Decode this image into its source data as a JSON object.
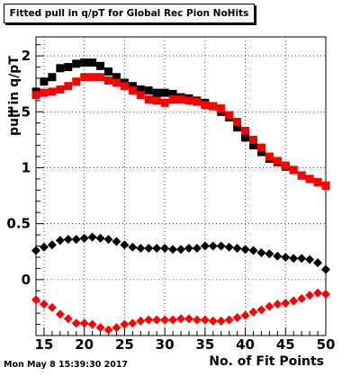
{
  "title": "Fitted pull in q/pT for Global Rec Pion NoHits",
  "timestamp": "Mon May  8 15:39:30 2017",
  "chart_data": {
    "type": "scatter",
    "title": "Fitted pull in q/pT for Global Rec Pion NoHits",
    "xlabel": "No. of Fit Points",
    "ylabel": "pull in q/pT",
    "xlim": [
      14,
      50
    ],
    "ylim": [
      -0.5,
      2.17
    ],
    "xticks": [
      15,
      20,
      25,
      30,
      35,
      40,
      45,
      50
    ],
    "yticks": [
      0,
      0.5,
      1,
      1.5,
      2
    ],
    "ytick_labels": [
      "0",
      "0.5",
      "1",
      "1.5",
      "2"
    ],
    "grid": true,
    "x": [
      14,
      15,
      16,
      17,
      18,
      19,
      20,
      21,
      22,
      23,
      24,
      25,
      26,
      27,
      28,
      29,
      30,
      31,
      32,
      33,
      34,
      35,
      36,
      37,
      38,
      39,
      40,
      41,
      42,
      43,
      44,
      45,
      46,
      47,
      48,
      49,
      50
    ],
    "series": [
      {
        "marker": "square",
        "color": "#000000",
        "values": [
          1.68,
          1.77,
          1.81,
          1.89,
          1.9,
          1.93,
          1.94,
          1.94,
          1.91,
          1.86,
          1.81,
          1.76,
          1.73,
          1.7,
          1.69,
          1.67,
          1.67,
          1.66,
          1.63,
          1.62,
          1.6,
          1.58,
          1.55,
          1.5,
          1.45,
          1.36,
          1.27,
          1.2,
          1.14,
          1.08,
          1.05,
          1.01,
          0.98,
          0.93,
          0.9,
          0.87,
          0.84
        ]
      },
      {
        "marker": "square",
        "color": "#ff0000",
        "values": [
          1.65,
          1.67,
          1.68,
          1.7,
          1.73,
          1.77,
          1.81,
          1.81,
          1.81,
          1.78,
          1.76,
          1.73,
          1.69,
          1.65,
          1.61,
          1.6,
          1.58,
          1.61,
          1.61,
          1.6,
          1.59,
          1.56,
          1.55,
          1.53,
          1.47,
          1.41,
          1.33,
          1.25,
          1.18,
          1.1,
          1.06,
          1.02,
          0.98,
          0.93,
          0.9,
          0.87,
          0.84
        ]
      },
      {
        "marker": "diamond",
        "color": "#000000",
        "values": [
          0.26,
          0.29,
          0.31,
          0.35,
          0.36,
          0.36,
          0.37,
          0.38,
          0.37,
          0.36,
          0.34,
          0.31,
          0.29,
          0.28,
          0.28,
          0.28,
          0.28,
          0.27,
          0.27,
          0.28,
          0.28,
          0.3,
          0.3,
          0.3,
          0.29,
          0.28,
          0.27,
          0.26,
          0.24,
          0.23,
          0.21,
          0.2,
          0.19,
          0.19,
          0.18,
          0.15,
          0.09
        ]
      },
      {
        "marker": "diamond",
        "color": "#ff0000",
        "values": [
          -0.18,
          -0.22,
          -0.25,
          -0.31,
          -0.35,
          -0.39,
          -0.39,
          -0.4,
          -0.43,
          -0.45,
          -0.43,
          -0.4,
          -0.39,
          -0.37,
          -0.36,
          -0.36,
          -0.36,
          -0.36,
          -0.35,
          -0.35,
          -0.36,
          -0.36,
          -0.37,
          -0.37,
          -0.36,
          -0.34,
          -0.32,
          -0.29,
          -0.27,
          -0.24,
          -0.22,
          -0.21,
          -0.19,
          -0.17,
          -0.14,
          -0.12,
          -0.13
        ]
      }
    ]
  }
}
